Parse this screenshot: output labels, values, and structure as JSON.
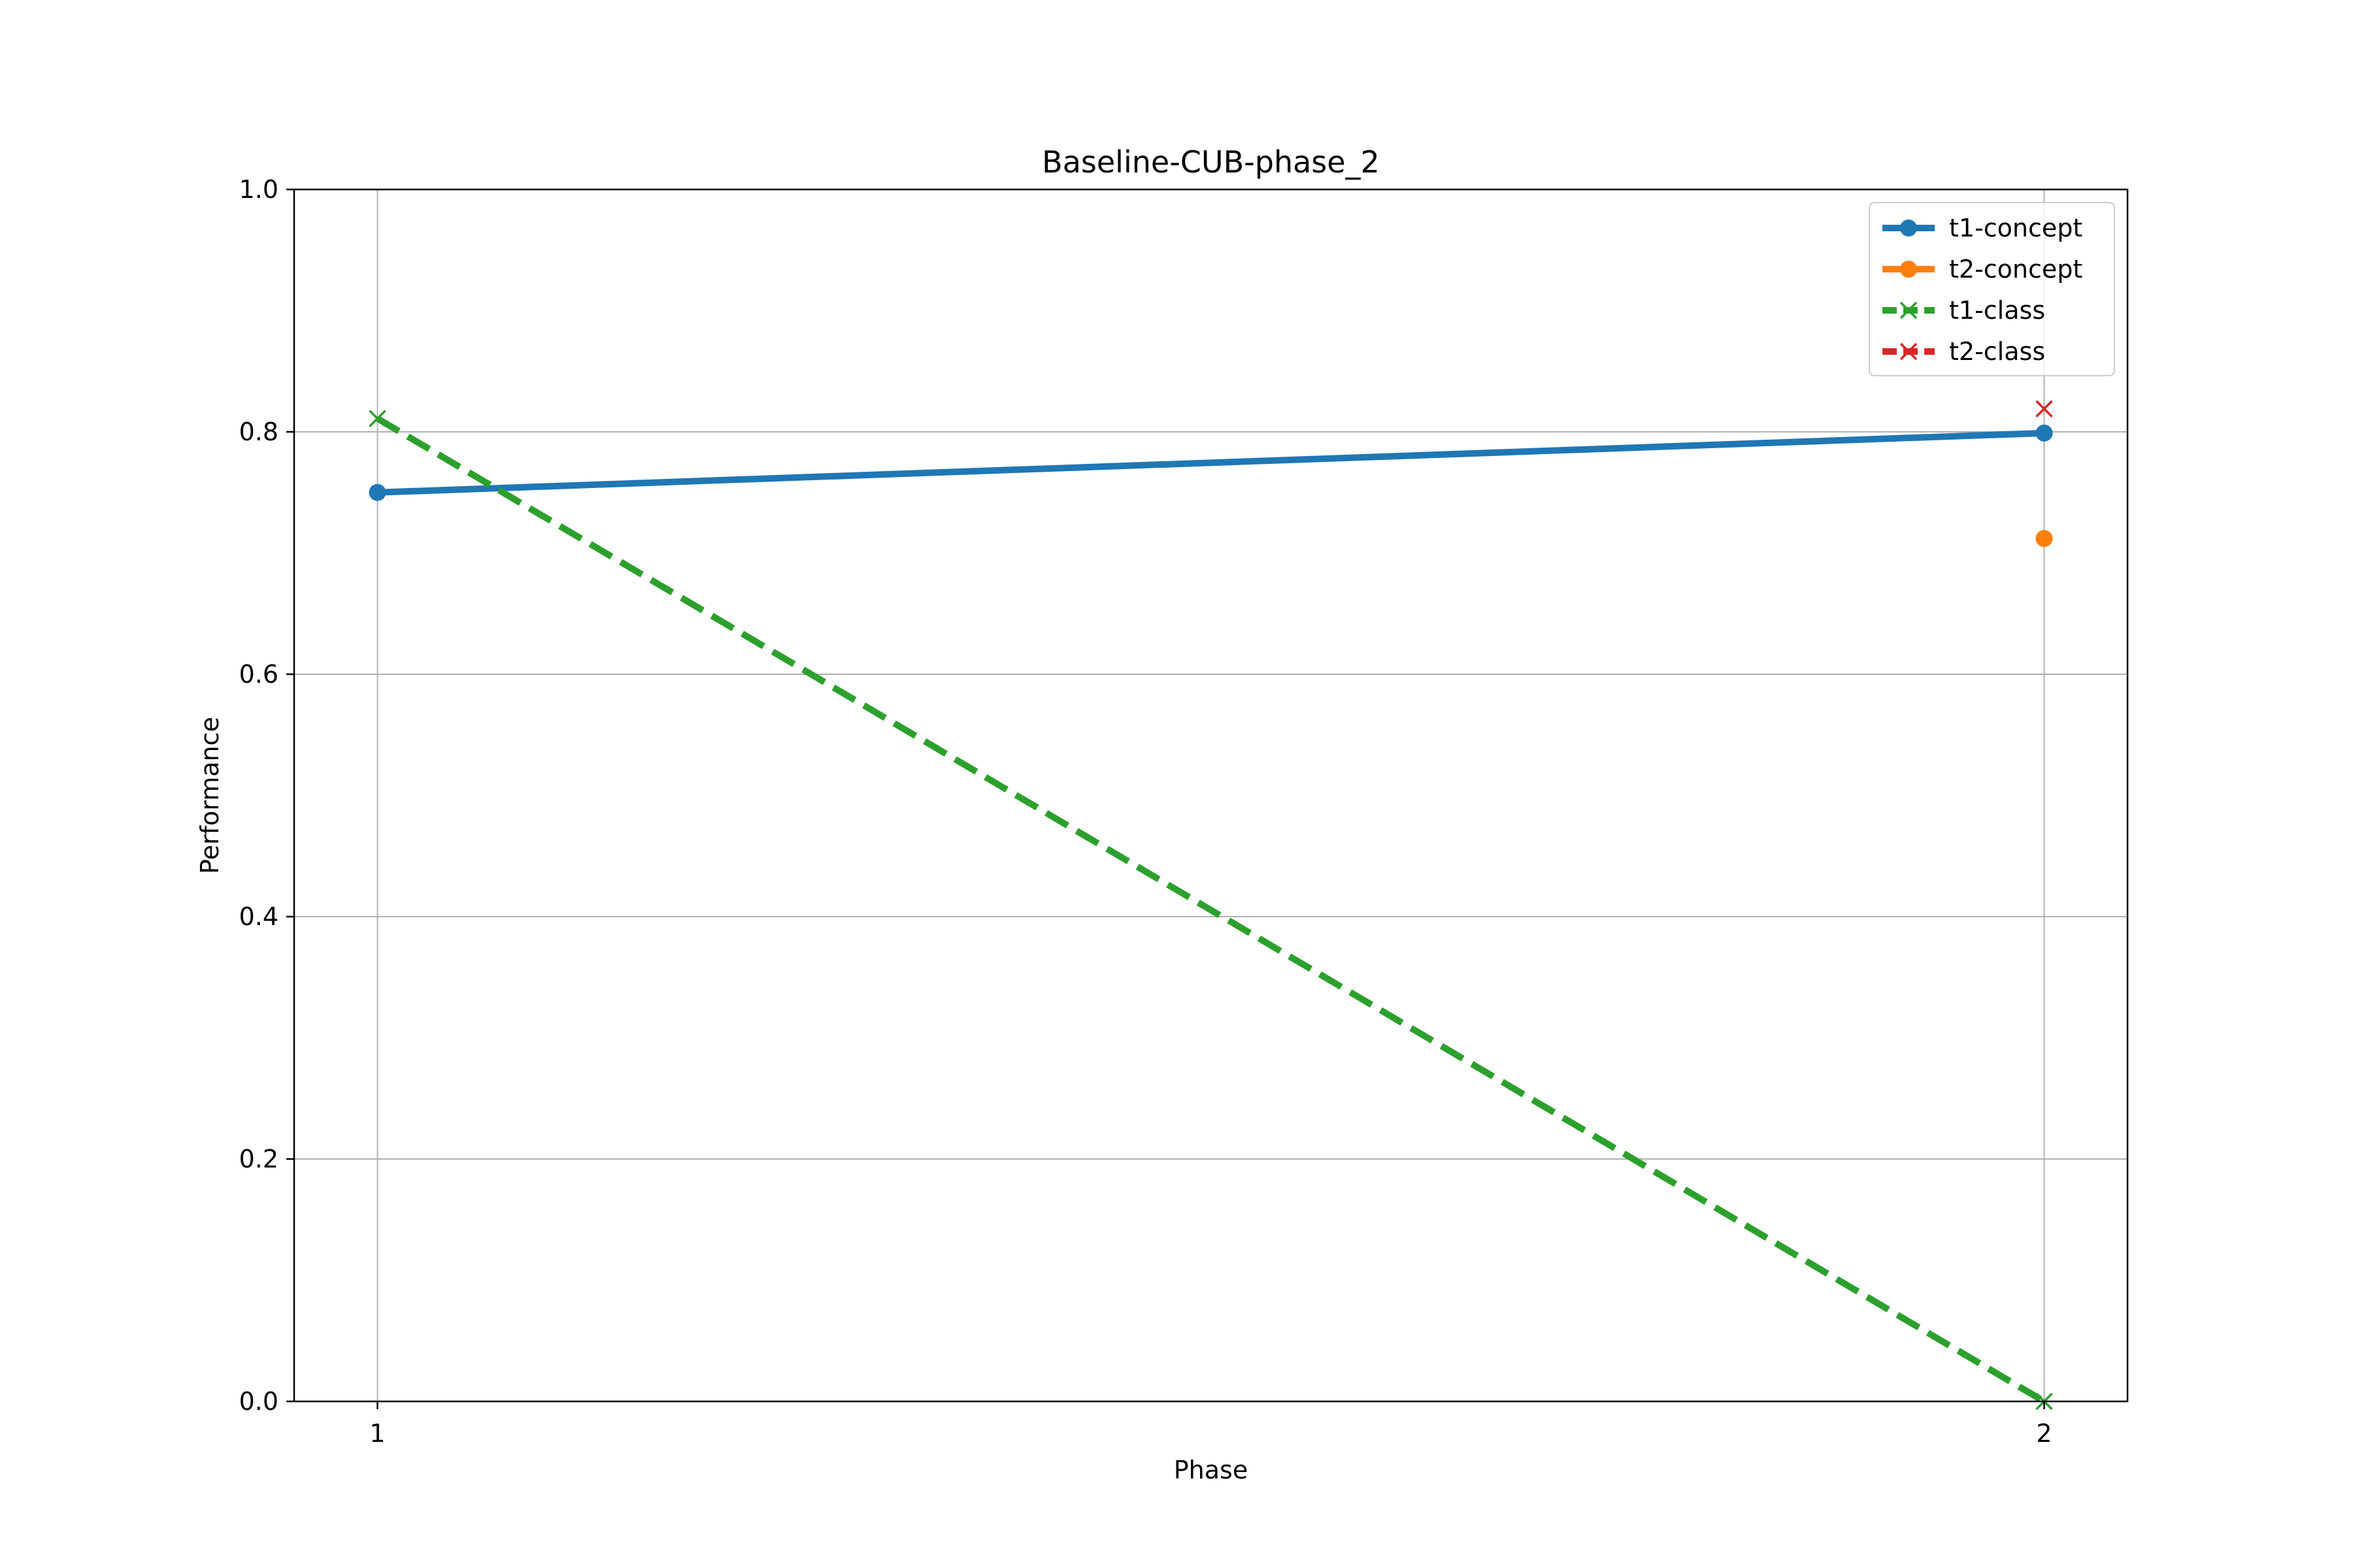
{
  "chart_data": {
    "type": "line",
    "title": "Baseline-CUB-phase_2",
    "xlabel": "Phase",
    "ylabel": "Performance",
    "x_ticks": [
      1,
      2
    ],
    "x_tick_labels": [
      "1",
      "2"
    ],
    "y_ticks": [
      0.0,
      0.2,
      0.4,
      0.6,
      0.8,
      1.0
    ],
    "y_tick_labels": [
      "0.0",
      "0.2",
      "0.4",
      "0.6",
      "0.8",
      "1.0"
    ],
    "xlim": [
      0.95,
      2.05
    ],
    "ylim": [
      0.0,
      1.0
    ],
    "grid": true,
    "legend_position": "upper right",
    "series": [
      {
        "name": "t1-concept",
        "x": [
          1,
          2
        ],
        "y": [
          0.75,
          0.799
        ],
        "color": "#1f77b4",
        "line_style": "solid",
        "marker": "circle"
      },
      {
        "name": "t2-concept",
        "x": [
          2
        ],
        "y": [
          0.712
        ],
        "color": "#ff7f0e",
        "line_style": "solid",
        "marker": "circle"
      },
      {
        "name": "t1-class",
        "x": [
          1,
          2
        ],
        "y": [
          0.811,
          0.0
        ],
        "color": "#2ca02c",
        "line_style": "dashed",
        "marker": "x"
      },
      {
        "name": "t2-class",
        "x": [
          2
        ],
        "y": [
          0.819
        ],
        "color": "#d62728",
        "line_style": "dashed",
        "marker": "x"
      }
    ]
  }
}
